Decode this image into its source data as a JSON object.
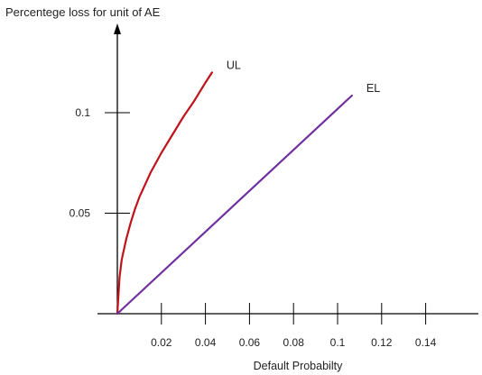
{
  "chart_data": {
    "type": "line",
    "title": "Percentege loss for unit of AE",
    "xlabel": "Default Probabilty",
    "ylabel": "Percentege loss for unit of AE",
    "xlim": [
      0,
      0.16
    ],
    "ylim": [
      0,
      0.13
    ],
    "x_ticks": [
      {
        "value": 0.02,
        "label": "0.02"
      },
      {
        "value": 0.04,
        "label": "0.04"
      },
      {
        "value": 0.06,
        "label": "0.06"
      },
      {
        "value": 0.08,
        "label": "0.08"
      },
      {
        "value": 0.1,
        "label": "0.1"
      },
      {
        "value": 0.12,
        "label": "0.12"
      },
      {
        "value": 0.14,
        "label": "0.14"
      }
    ],
    "y_ticks": [
      {
        "value": 0.05,
        "label": "0.05"
      },
      {
        "value": 0.1,
        "label": "0.1"
      }
    ],
    "grid": false,
    "legend": "none",
    "series": [
      {
        "name": "UL",
        "color": "#c0121a",
        "x": [
          0,
          0.001,
          0.002,
          0.004,
          0.006,
          0.008,
          0.01,
          0.015,
          0.02,
          0.025,
          0.03,
          0.035,
          0.04,
          0.043
        ],
        "y": [
          0,
          0.018,
          0.027,
          0.037,
          0.045,
          0.052,
          0.058,
          0.07,
          0.08,
          0.089,
          0.098,
          0.106,
          0.115,
          0.12
        ]
      },
      {
        "name": "EL",
        "color": "#7030a0",
        "x": [
          0,
          0.1065
        ],
        "y": [
          0,
          0.1085
        ]
      }
    ]
  }
}
